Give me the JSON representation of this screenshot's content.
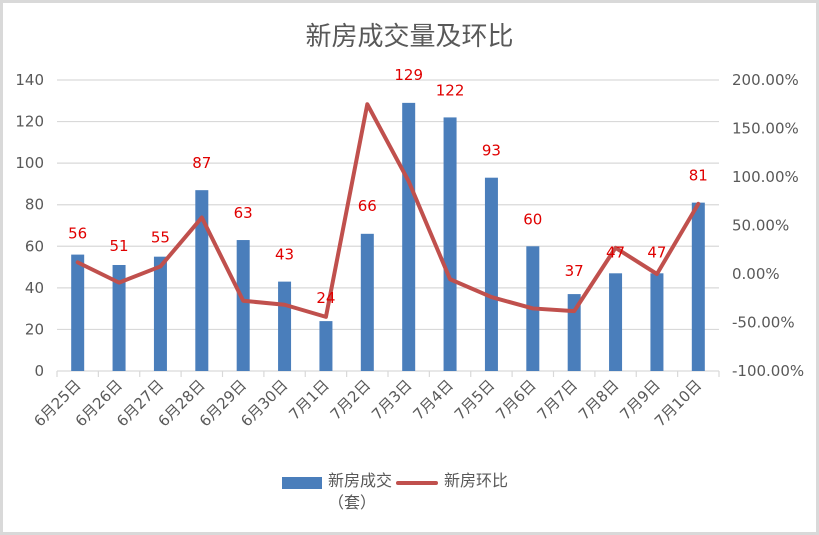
{
  "chart_data": {
    "type": "bar+line",
    "title": "新房成交量及环比",
    "categories": [
      "6月25日",
      "6月26日",
      "6月27日",
      "6月28日",
      "6月29日",
      "6月30日",
      "7月1日",
      "7月2日",
      "7月3日",
      "7月4日",
      "7月5日",
      "7月6日",
      "7月7日",
      "7月8日",
      "7月9日",
      "7月10日"
    ],
    "series": [
      {
        "name": "新房成交（套）",
        "type": "bar",
        "axis": "left",
        "color": "#4a7ebb",
        "values": [
          56,
          51,
          55,
          87,
          63,
          43,
          24,
          66,
          129,
          122,
          93,
          60,
          37,
          47,
          47,
          81
        ]
      },
      {
        "name": "新房环比",
        "type": "line",
        "axis": "right",
        "color": "#c0504d",
        "values": [
          12.0,
          -8.9,
          7.8,
          58.2,
          -27.6,
          -31.7,
          -44.2,
          175.0,
          95.5,
          -5.4,
          -23.8,
          -35.5,
          -38.3,
          27.0,
          0.0,
          72.3
        ]
      }
    ],
    "left_axis": {
      "ylim": [
        0,
        140
      ],
      "ticks": [
        "0",
        "20",
        "40",
        "60",
        "80",
        "100",
        "120",
        "140"
      ]
    },
    "right_axis": {
      "ylim": [
        -100,
        200
      ],
      "ticks": [
        "-100.00%",
        "-50.00%",
        "0.00%",
        "50.00%",
        "100.00%",
        "150.00%",
        "200.00%"
      ]
    },
    "data_labels": [
      "56",
      "51",
      "55",
      "87",
      "63",
      "43",
      "24",
      "66",
      "129",
      "122",
      "93",
      "60",
      "37",
      "47",
      "47",
      "81"
    ],
    "grid": true,
    "legend_position": "bottom",
    "xlabel": "",
    "ylabel": ""
  },
  "legend": {
    "bar_label_line1": "新房成交",
    "bar_label_line2": "（套）",
    "line_label": "新房环比"
  }
}
